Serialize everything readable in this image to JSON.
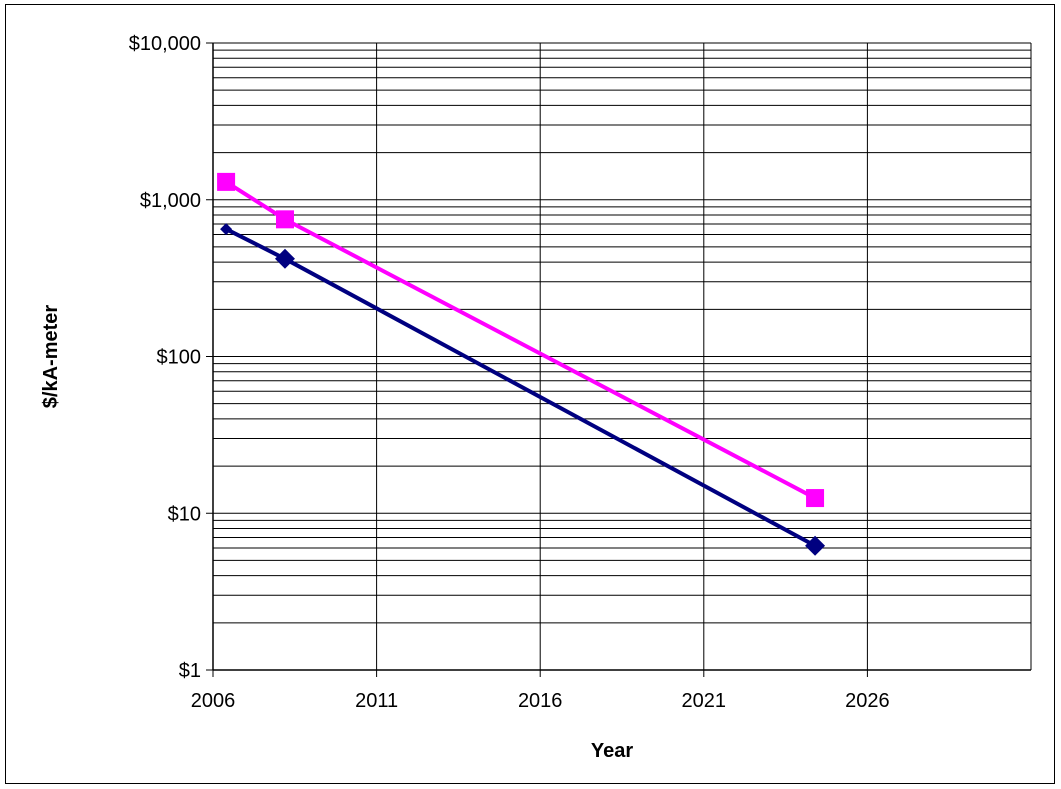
{
  "chart_data": {
    "type": "line",
    "title": "",
    "xlabel": "Year",
    "ylabel": "$/kA-meter",
    "x_ticks": [
      "2006",
      "2011",
      "2016",
      "2021",
      "2026"
    ],
    "x_tick_values": [
      2006,
      2011,
      2016,
      2021,
      2026
    ],
    "xlim": [
      2006,
      2031
    ],
    "y_scale": "log",
    "y_ticks": [
      "$1",
      "$10",
      "$100",
      "$1,000",
      "$10,000"
    ],
    "y_tick_values": [
      1,
      10,
      100,
      1000,
      10000
    ],
    "ylim": [
      1,
      10000
    ],
    "grid": true,
    "legend": "none",
    "series": [
      {
        "marker": "diamond",
        "color": "#000080",
        "points": [
          {
            "x": 2006.4,
            "y": 650
          },
          {
            "x": 2008.2,
            "y": 420
          },
          {
            "x": 2024.4,
            "y": 6.2
          }
        ]
      },
      {
        "marker": "square",
        "color": "#ff00ff",
        "points": [
          {
            "x": 2006.4,
            "y": 1300
          },
          {
            "x": 2008.2,
            "y": 750
          },
          {
            "x": 2024.4,
            "y": 12.5
          }
        ]
      }
    ]
  }
}
